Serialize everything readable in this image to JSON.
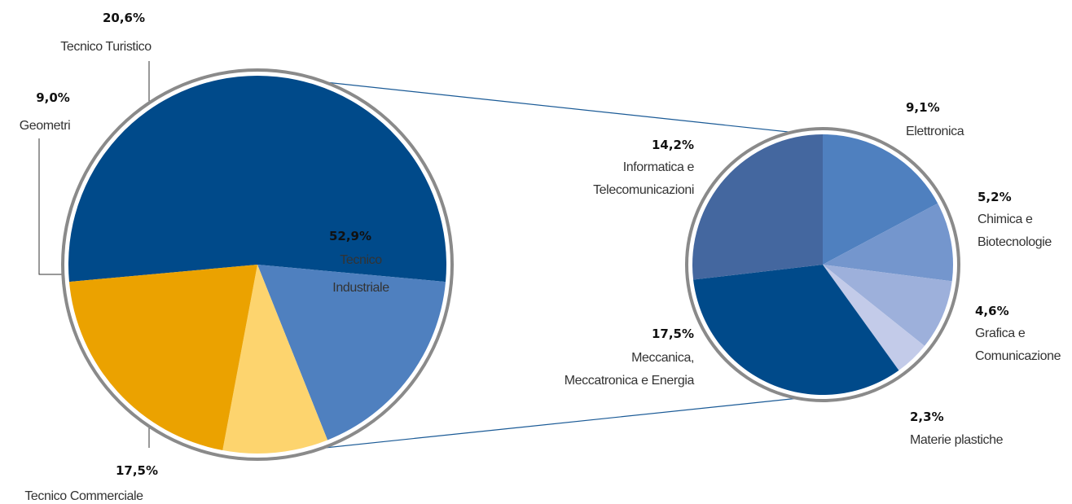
{
  "chart_data": [
    {
      "type": "pie",
      "categories": [
        "Tecnico\nIndustriale",
        "Tecnico Commerciale",
        "Geometri",
        "Tecnico Turistico"
      ],
      "values": [
        52.9,
        17.5,
        9.0,
        20.6
      ],
      "value_labels": [
        "52,9%",
        "17,5%",
        "9,0%",
        "20,6%"
      ],
      "colors": [
        "#004a8a",
        "#4f80bf",
        "#fdd46e",
        "#eba200"
      ]
    },
    {
      "type": "pie",
      "categories": [
        "Elettronica",
        "Chimica e\nBiotecnologie",
        "Grafica e\nComunicazione",
        "Materie plastiche",
        "Meccanica,\nMeccatronica e Energia",
        "Informatica e\nTelecomunicazioni"
      ],
      "values": [
        9.1,
        5.2,
        4.6,
        2.3,
        17.5,
        14.2
      ],
      "value_labels": [
        "9,1%",
        "5,2%",
        "4,6%",
        "2,3%",
        "17,5%",
        "14,2%"
      ],
      "colors": [
        "#4f80bf",
        "#7496cd",
        "#9db0db",
        "#c3cbe9",
        "#004a8a",
        "#44679f"
      ]
    }
  ]
}
